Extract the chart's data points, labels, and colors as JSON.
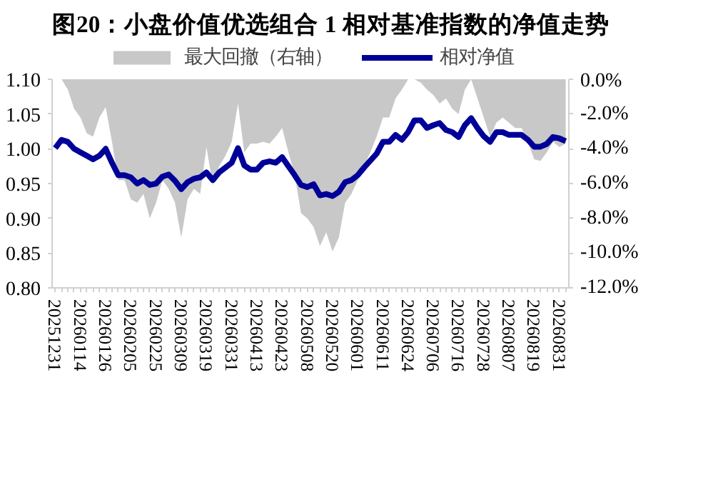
{
  "chart_data": {
    "type": "line",
    "title": "图20：小盘价值优选组合 1 相对基准指数的净值走势",
    "categories": [
      "20251231",
      null,
      null,
      null,
      "20260114",
      null,
      null,
      null,
      "20260126",
      null,
      null,
      null,
      "20260205",
      null,
      null,
      null,
      "20260225",
      null,
      null,
      null,
      "20260309",
      null,
      null,
      null,
      "20260319",
      null,
      null,
      null,
      "20260331",
      null,
      null,
      null,
      "20260413",
      null,
      null,
      null,
      "20260423",
      null,
      null,
      null,
      "20260508",
      null,
      null,
      null,
      "20260520",
      null,
      null,
      null,
      "20260601",
      null,
      null,
      null,
      "20260611",
      null,
      null,
      null,
      "20260624",
      null,
      null,
      null,
      "20260706",
      null,
      null,
      null,
      "20260716",
      null,
      null,
      null,
      "20260728",
      null,
      null,
      null,
      "20260807",
      null,
      null,
      null,
      "20260819",
      null,
      null,
      null,
      "20260831",
      null
    ],
    "series": [
      {
        "name": "最大回撤（右轴）",
        "type": "area",
        "axis": "y2",
        "color": "#c8c8c8",
        "values": [
          0,
          0,
          -0.6,
          -1.7,
          -2.2,
          -3.1,
          -3.3,
          -2.2,
          -1.6,
          -3.6,
          -5.8,
          -5.8,
          -6.9,
          -7.1,
          -6.6,
          -8.0,
          -7.1,
          -5.8,
          -6.3,
          -7.1,
          -9.1,
          -6.9,
          -6.3,
          -6.6,
          -3.9,
          -6.1,
          -5.0,
          -4.4,
          -3.6,
          -1.4,
          -4.2,
          -3.7,
          -3.7,
          -3.6,
          -3.7,
          -3.3,
          -2.8,
          -4.2,
          -5.5,
          -7.7,
          -8.0,
          -8.5,
          -9.6,
          -8.8,
          -9.9,
          -9.1,
          -7.1,
          -6.6,
          -5.8,
          -5.0,
          -4.2,
          -3.3,
          -2.2,
          -2.2,
          -1.1,
          -0.6,
          0,
          0,
          -0.2,
          -0.6,
          -0.9,
          -1.4,
          -1.1,
          -1.7,
          -2.0,
          -0.6,
          0,
          -1.1,
          -2.2,
          -3.3,
          -2.5,
          -2.2,
          -2.5,
          -2.8,
          -2.8,
          -3.6,
          -4.6,
          -4.7,
          -4.2,
          -3.6,
          -3.9,
          -3.7
        ]
      },
      {
        "name": "相对净值",
        "type": "line",
        "color": "#000099",
        "values": [
          1.001,
          1.013,
          1.01,
          1.0,
          0.995,
          0.99,
          0.985,
          0.99,
          1.0,
          0.98,
          0.962,
          0.962,
          0.959,
          0.95,
          0.955,
          0.948,
          0.95,
          0.96,
          0.963,
          0.954,
          0.942,
          0.952,
          0.957,
          0.959,
          0.966,
          0.955,
          0.966,
          0.973,
          0.98,
          1.001,
          0.976,
          0.97,
          0.97,
          0.98,
          0.982,
          0.98,
          0.988,
          0.975,
          0.962,
          0.948,
          0.945,
          0.949,
          0.933,
          0.935,
          0.932,
          0.938,
          0.952,
          0.955,
          0.962,
          0.973,
          0.983,
          0.993,
          1.01,
          1.01,
          1.02,
          1.013,
          1.024,
          1.041,
          1.041,
          1.03,
          1.034,
          1.037,
          1.027,
          1.024,
          1.017,
          1.034,
          1.044,
          1.03,
          1.018,
          1.01,
          1.024,
          1.024,
          1.02,
          1.02,
          1.02,
          1.013,
          1.003,
          1.003,
          1.007,
          1.017,
          1.015,
          1.011
        ]
      }
    ],
    "ylim": [
      0.8,
      1.1
    ],
    "yticks": [
      {
        "value": 0.8,
        "label": "0.80"
      },
      0.85,
      {
        "value": 0.9,
        "label": "0.90"
      },
      0.95,
      {
        "value": 1.0,
        "label": "1.00"
      },
      1.05,
      {
        "value": 1.1,
        "label": "1.10"
      }
    ],
    "y2lim": [
      -12,
      0
    ],
    "y2ticks": [
      {
        "value": -12,
        "label": "-12.0%"
      },
      {
        "value": -10,
        "label": "-10.0%"
      },
      {
        "value": -8,
        "label": "-8.0%"
      },
      {
        "value": -6,
        "label": "-6.0%"
      },
      {
        "value": -4,
        "label": "-4.0%"
      },
      {
        "value": -2,
        "label": "-2.0%"
      },
      {
        "value": 0,
        "label": "0.0%"
      }
    ],
    "legend": "top",
    "grid": false
  }
}
